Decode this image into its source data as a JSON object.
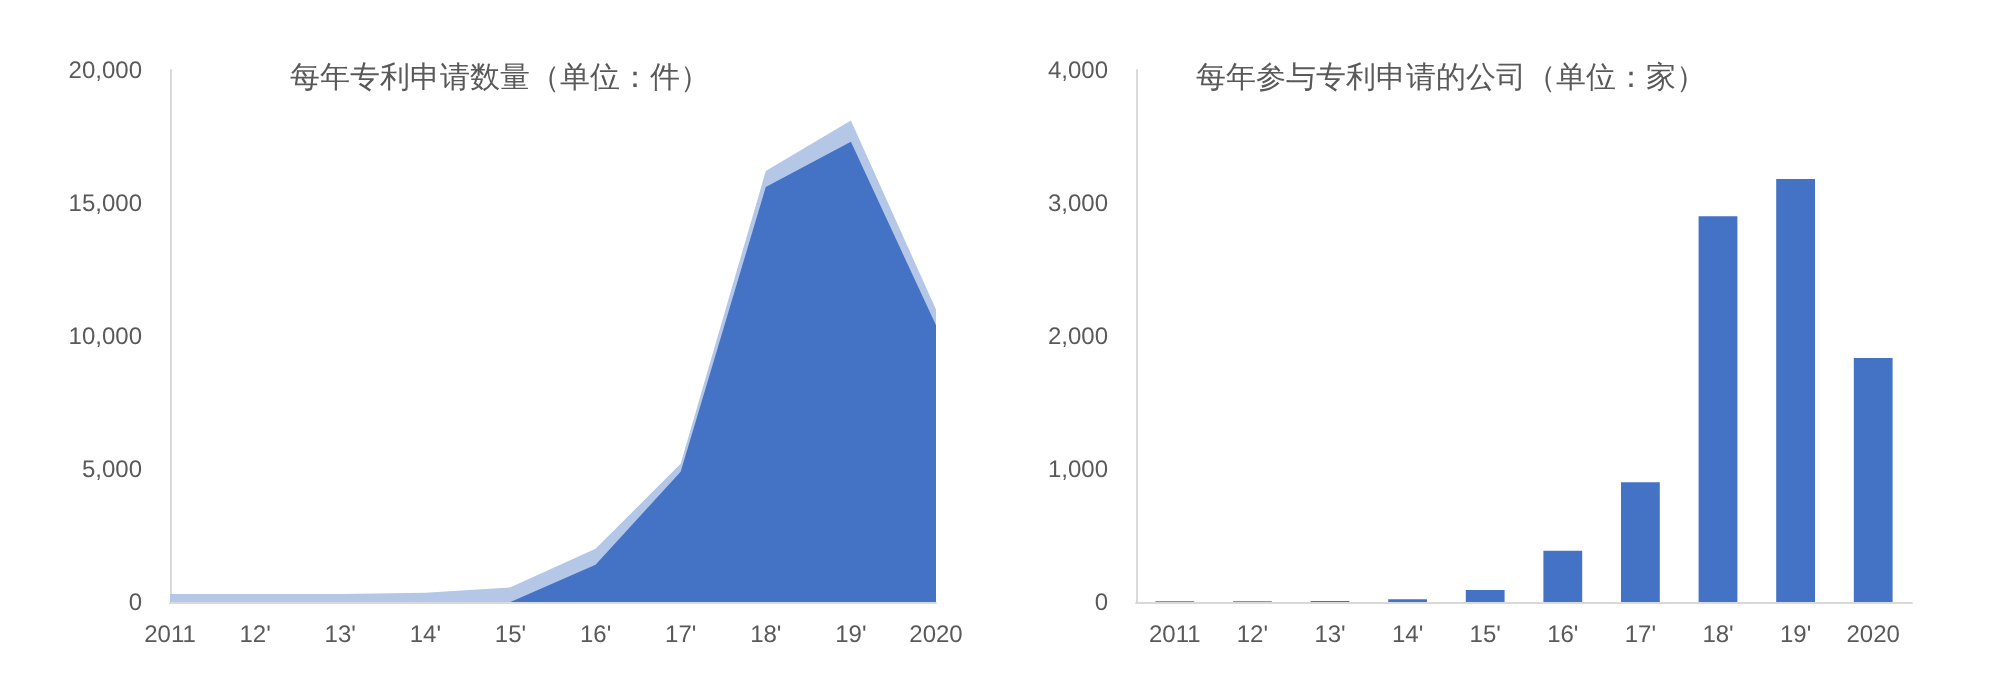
{
  "chart_data": [
    {
      "type": "area",
      "title": "每年专利申请数量（单位：件）",
      "categories": [
        "2011",
        "12'",
        "13'",
        "14'",
        "15'",
        "16'",
        "17'",
        "18'",
        "19'",
        "2020"
      ],
      "series": [
        {
          "color": "#b4c7e7",
          "values": [
            300,
            300,
            300,
            350,
            550,
            2000,
            5200,
            16200,
            18100,
            11000
          ]
        },
        {
          "color": "#4472c4",
          "values": [
            0,
            0,
            0,
            0,
            0,
            1400,
            4900,
            15600,
            17300,
            10400
          ]
        }
      ],
      "ylim": [
        0,
        20000
      ],
      "yticks": [
        {
          "value": 0,
          "label": "0"
        },
        {
          "value": 5000,
          "label": "5,000"
        },
        {
          "value": 10000,
          "label": "10,000"
        },
        {
          "value": 15000,
          "label": "15,000"
        },
        {
          "value": 20000,
          "label": "20,000"
        }
      ]
    },
    {
      "type": "bar",
      "title": "每年参与专利申请的公司（单位：家）",
      "categories": [
        "2011",
        "12'",
        "13'",
        "14'",
        "15'",
        "16'",
        "17'",
        "18'",
        "19'",
        "2020"
      ],
      "color": "#4472c4",
      "values": [
        5,
        5,
        8,
        20,
        90,
        385,
        900,
        2900,
        3180,
        1835
      ],
      "ylim": [
        0,
        4000
      ],
      "yticks": [
        {
          "value": 0,
          "label": "0"
        },
        {
          "value": 1000,
          "label": "1,000"
        },
        {
          "value": 2000,
          "label": "2,000"
        },
        {
          "value": 3000,
          "label": "3,000"
        },
        {
          "value": 4000,
          "label": "4,000"
        }
      ]
    }
  ]
}
